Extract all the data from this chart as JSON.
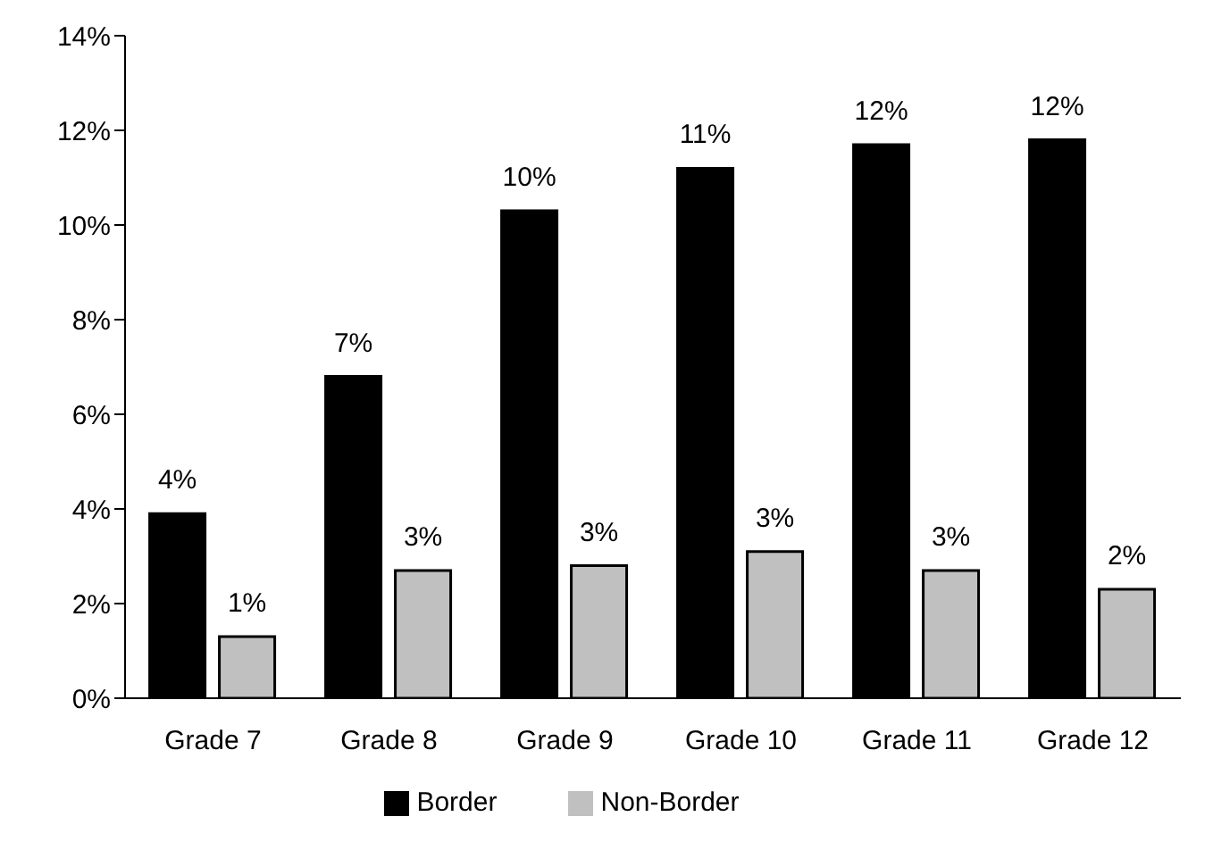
{
  "chart_data": {
    "type": "bar",
    "categories": [
      "Grade 7",
      "Grade 8",
      "Grade 9",
      "Grade 10",
      "Grade 11",
      "Grade 12"
    ],
    "series": [
      {
        "name": "Border",
        "color": "#000000",
        "values": [
          3.9,
          6.8,
          10.3,
          11.2,
          11.7,
          11.8
        ],
        "value_labels": [
          "4%",
          "7%",
          "10%",
          "11%",
          "12%",
          "12%"
        ]
      },
      {
        "name": "Non-Border",
        "color": "#c0c0c0",
        "values": [
          1.3,
          2.7,
          2.8,
          3.1,
          2.7,
          2.3
        ],
        "value_labels": [
          "1%",
          "3%",
          "3%",
          "3%",
          "3%",
          "2%"
        ]
      }
    ],
    "ylim": [
      0,
      14
    ],
    "yticks": [
      {
        "value": 0,
        "label": "0%"
      },
      {
        "value": 2,
        "label": "2%"
      },
      {
        "value": 4,
        "label": "4%"
      },
      {
        "value": 6,
        "label": "6%"
      },
      {
        "value": 8,
        "label": "8%"
      },
      {
        "value": 10,
        "label": "10%"
      },
      {
        "value": 12,
        "label": "12%"
      },
      {
        "value": 14,
        "label": "14%"
      }
    ],
    "grid": false,
    "legend": "bottom"
  }
}
